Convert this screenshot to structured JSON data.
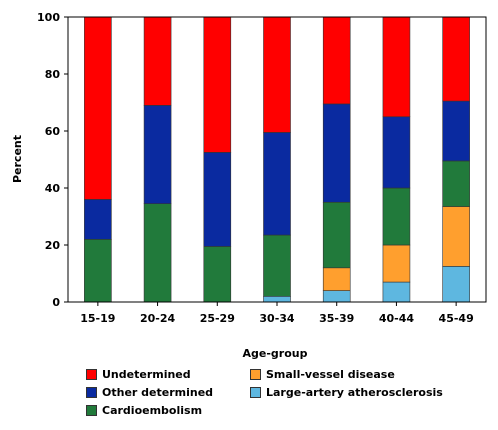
{
  "chart_data": {
    "type": "bar",
    "stacked": true,
    "categories": [
      "15-19",
      "20-24",
      "25-29",
      "30-34",
      "35-39",
      "40-44",
      "45-49"
    ],
    "series": [
      {
        "name": "Large-artery atherosclerosis",
        "color": "#5eb7e0",
        "values": [
          0,
          0,
          0,
          2,
          4,
          7,
          12.5
        ]
      },
      {
        "name": "Small-vessel disease",
        "color": "#ff9f2e",
        "values": [
          0,
          0,
          0,
          0,
          8,
          13,
          21
        ]
      },
      {
        "name": "Cardioembolism",
        "color": "#217a3b",
        "values": [
          22,
          34.5,
          19.5,
          21.5,
          23,
          20,
          16
        ]
      },
      {
        "name": "Other determined",
        "color": "#0a2aa0",
        "values": [
          14,
          34.5,
          33,
          36,
          34.5,
          25,
          21
        ]
      },
      {
        "name": "Undetermined",
        "color": "#ff0000",
        "values": [
          64,
          31,
          47.5,
          40.5,
          30.5,
          35,
          29.5
        ]
      }
    ],
    "xlabel": "Age-group",
    "ylabel": "Percent",
    "ylim": [
      0,
      100
    ],
    "yticks": [
      0,
      20,
      40,
      60,
      80,
      100
    ],
    "grid": false,
    "legend_placement": "bottom"
  },
  "legend": {
    "undetermined": "Undetermined",
    "other_determined": "Other determined",
    "cardioembolism": "Cardioembolism",
    "small_vessel": "Small-vessel disease",
    "large_artery": "Large-artery atherosclerosis"
  }
}
